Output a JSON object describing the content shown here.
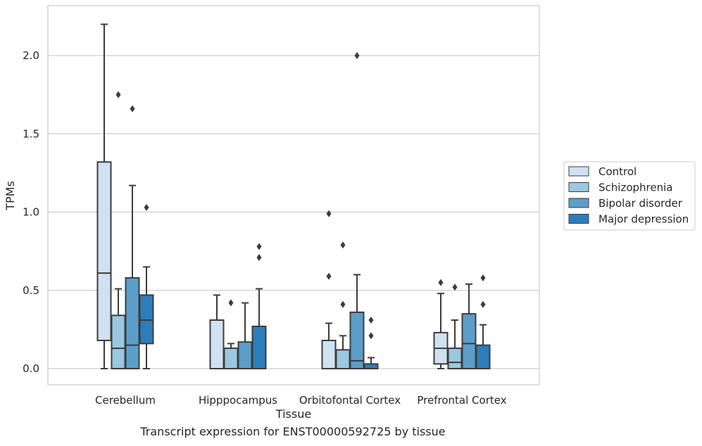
{
  "chart_data": {
    "type": "box",
    "xlabel": "Tissue",
    "ylabel": "TPMs",
    "caption": "Transcript expression for ENST00000592725 by tissue",
    "ylim": [
      -0.11,
      2.33
    ],
    "yticks": [
      0.0,
      0.5,
      1.0,
      1.5,
      2.0
    ],
    "ytick_labels": [
      "0.0",
      "0.5",
      "1.0",
      "1.5",
      "2.0"
    ],
    "categories": [
      "Cerebellum",
      "Hipppocampus",
      "Orbitofontal Cortex",
      "Prefrontal Cortex"
    ],
    "grid": "horizontal",
    "legend_position": "right",
    "series": [
      {
        "name": "Control",
        "color": "#d0e1f2",
        "boxes": [
          {
            "min": 0.0,
            "q1": 0.18,
            "median": 0.61,
            "q3": 1.32,
            "max": 2.2,
            "outliers": []
          },
          {
            "min": 0.0,
            "q1": 0.0,
            "median": 0.0,
            "q3": 0.31,
            "max": 0.47,
            "outliers": []
          },
          {
            "min": 0.0,
            "q1": 0.0,
            "median": 0.0,
            "q3": 0.18,
            "max": 0.29,
            "outliers": [
              0.59,
              0.99
            ]
          },
          {
            "min": 0.0,
            "q1": 0.03,
            "median": 0.13,
            "q3": 0.23,
            "max": 0.48,
            "outliers": [
              0.55
            ]
          }
        ]
      },
      {
        "name": "Schizophrenia",
        "color": "#9ac8e0",
        "boxes": [
          {
            "min": 0.0,
            "q1": 0.0,
            "median": 0.13,
            "q3": 0.34,
            "max": 0.51,
            "outliers": [
              1.75
            ]
          },
          {
            "min": 0.0,
            "q1": 0.0,
            "median": 0.0,
            "q3": 0.13,
            "max": 0.16,
            "outliers": [
              0.42
            ]
          },
          {
            "min": 0.0,
            "q1": 0.0,
            "median": 0.0,
            "q3": 0.12,
            "max": 0.21,
            "outliers": [
              0.41,
              0.79
            ]
          },
          {
            "min": 0.0,
            "q1": 0.0,
            "median": 0.04,
            "q3": 0.13,
            "max": 0.31,
            "outliers": [
              0.52
            ]
          }
        ]
      },
      {
        "name": "Bipolar disorder",
        "color": "#5b9ec9",
        "boxes": [
          {
            "min": 0.0,
            "q1": 0.0,
            "median": 0.15,
            "q3": 0.58,
            "max": 1.17,
            "outliers": [
              1.66
            ]
          },
          {
            "min": 0.0,
            "q1": 0.0,
            "median": 0.0,
            "q3": 0.17,
            "max": 0.42,
            "outliers": []
          },
          {
            "min": 0.0,
            "q1": 0.0,
            "median": 0.05,
            "q3": 0.36,
            "max": 0.6,
            "outliers": [
              2.0
            ]
          },
          {
            "min": 0.0,
            "q1": 0.0,
            "median": 0.16,
            "q3": 0.35,
            "max": 0.54,
            "outliers": []
          }
        ]
      },
      {
        "name": "Major depression",
        "color": "#2d7dbb",
        "boxes": [
          {
            "min": 0.0,
            "q1": 0.16,
            "median": 0.31,
            "q3": 0.47,
            "max": 0.65,
            "outliers": [
              1.03
            ]
          },
          {
            "min": 0.0,
            "q1": 0.0,
            "median": 0.0,
            "q3": 0.27,
            "max": 0.51,
            "outliers": [
              0.71,
              0.78
            ]
          },
          {
            "min": 0.0,
            "q1": 0.0,
            "median": 0.0,
            "q3": 0.03,
            "max": 0.07,
            "outliers": [
              0.21,
              0.31
            ]
          },
          {
            "min": 0.0,
            "q1": 0.0,
            "median": 0.0,
            "q3": 0.15,
            "max": 0.28,
            "outliers": [
              0.41,
              0.58
            ]
          }
        ]
      }
    ]
  }
}
